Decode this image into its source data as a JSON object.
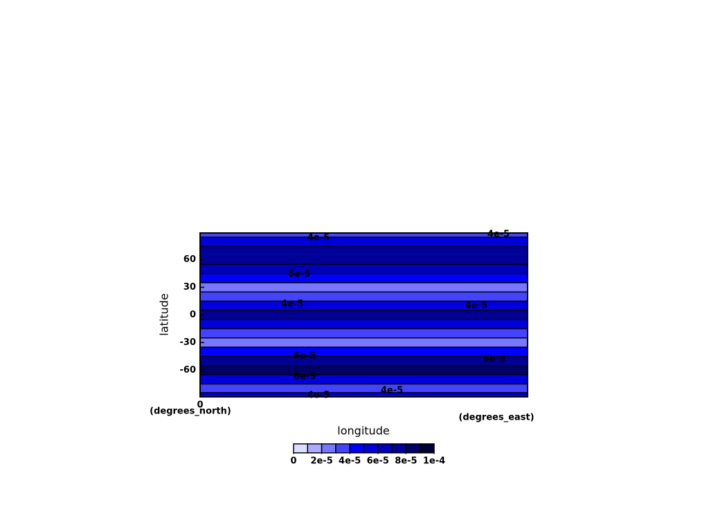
{
  "chart_data": {
    "type": "contour",
    "x_label": "longitude",
    "y_label": "latitude",
    "x_units": "(degrees_east)",
    "y_units": "(degrees_north)",
    "xlim": [
      0,
      360
    ],
    "xticks": [
      0
    ],
    "ylim": [
      -89,
      89
    ],
    "yticks": [
      60,
      30,
      0,
      -30,
      -60
    ],
    "y": [
      89,
      80,
      70,
      60,
      50,
      40,
      30,
      20,
      10,
      0,
      -10,
      -20,
      -30,
      -40,
      -50,
      -60,
      -70,
      -80,
      -89
    ],
    "values": [
      3.5e-05,
      5.5e-05,
      7e-05,
      7.5e-05,
      6.5e-05,
      4.5e-05,
      2.5e-05,
      3.5e-05,
      5.5e-05,
      7e-05,
      5.5e-05,
      3.5e-05,
      2.5e-05,
      4.5e-05,
      7e-05,
      8e-05,
      5.5e-05,
      3.5e-05,
      5e-05
    ],
    "levels": [
      0,
      1e-05,
      2e-05,
      3e-05,
      4e-05,
      5e-05,
      6e-05,
      7e-05,
      8e-05,
      9e-05,
      0.0001
    ],
    "colors": [
      "#ddddff",
      "#aaaaff",
      "#7777ff",
      "#4444ff",
      "#0000ff",
      "#0000dd",
      "#0000bb",
      "#000099",
      "#000066",
      "#000033"
    ],
    "colorbar_ticks": [
      0,
      {
        "value": 2e-05,
        "label": "2e-5"
      },
      {
        "value": 4e-05,
        "label": "4e-5"
      },
      {
        "value": 6e-05,
        "label": "6e-5"
      },
      {
        "value": 8e-05,
        "label": "8e-5"
      },
      {
        "value": 0.0001,
        "label": "1e-4"
      }
    ],
    "contour_labels": [
      "4e-5",
      "4e-5",
      "6e-5",
      "6e-5",
      "4e-5",
      "4e-5",
      "6e-5",
      "6e-5",
      "4e-5",
      "4e-5"
    ]
  }
}
